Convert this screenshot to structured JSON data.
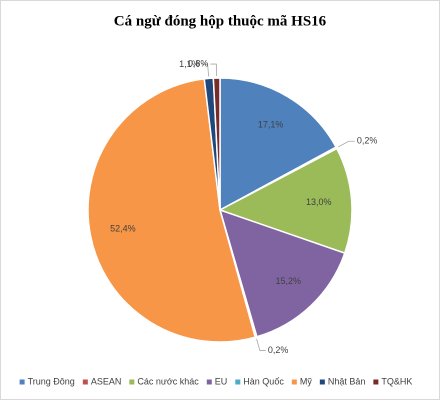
{
  "chart_data": {
    "type": "pie",
    "title": "Cá ngừ đóng hộp thuộc mã HS16",
    "categories": [
      "Trung Đông",
      "ASEAN",
      "Các nước khác",
      "EU",
      "Hàn Quốc",
      "Mỹ",
      "Nhật Bản",
      "TQ&HK"
    ],
    "values": [
      17.1,
      0.2,
      13.0,
      15.2,
      0.2,
      52.4,
      1.1,
      0.8
    ],
    "value_labels": [
      "17,1%",
      "0,2%",
      "13,0%",
      "15,2%",
      "0,2%",
      "52,4%",
      "1,1%",
      "0,8%"
    ],
    "colors": [
      "#4f81bd",
      "#c0504d",
      "#9bbb59",
      "#8064a2",
      "#4bacc6",
      "#f79646",
      "#1f497d",
      "#772c2a"
    ],
    "legend": "bottom"
  }
}
